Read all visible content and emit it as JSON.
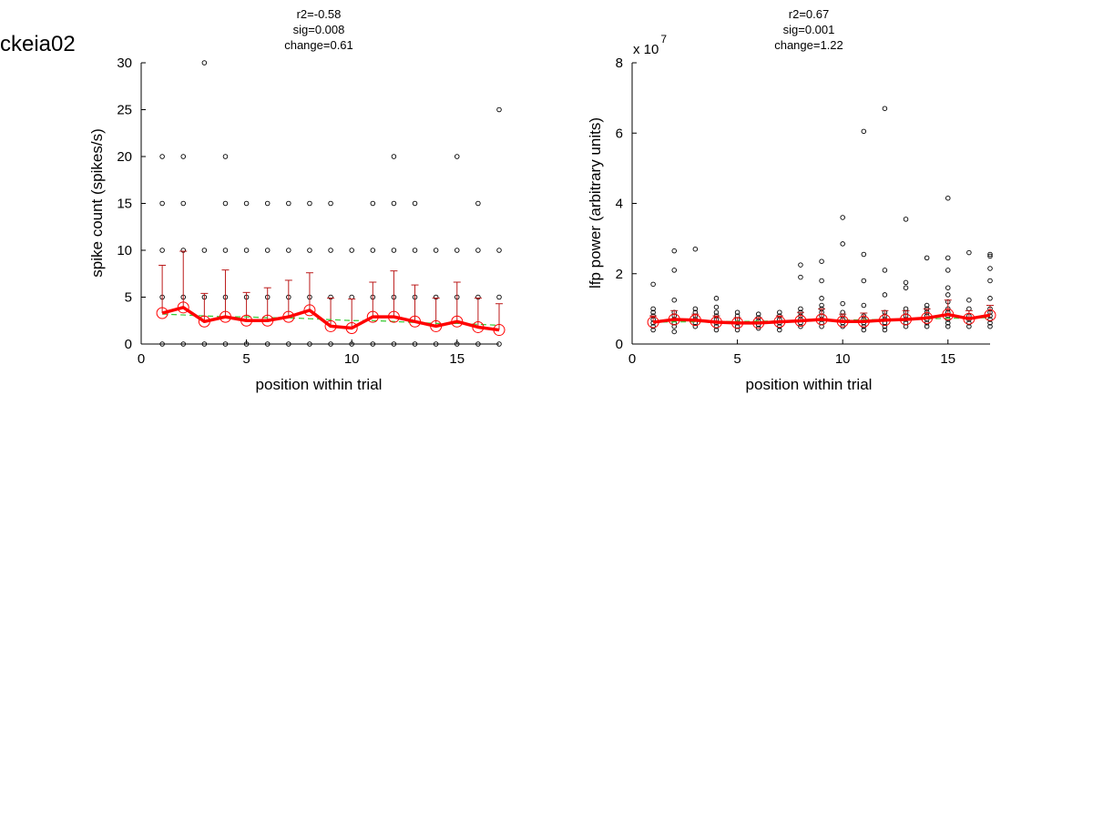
{
  "figure": {
    "title": "ckeia02"
  },
  "colors": {
    "mean": "#ff0000",
    "errorbar": "#bb1a1a",
    "fit": "#33cc33",
    "points": "#000000",
    "axes": "#000000"
  },
  "chart_data": [
    {
      "type": "scatter",
      "stats": [
        "r2=-0.58",
        "sig=0.008",
        "change=0.61"
      ],
      "xlabel": "position within trial",
      "ylabel": "spike count (spikes/s)",
      "xlim": [
        0,
        17
      ],
      "ylim": [
        0,
        30
      ],
      "xticks": [
        0,
        5,
        10,
        15
      ],
      "yticks": [
        0,
        5,
        10,
        15,
        20,
        25,
        30
      ],
      "grid": false,
      "legend": "none",
      "x": [
        1,
        2,
        3,
        4,
        5,
        6,
        7,
        8,
        9,
        10,
        11,
        12,
        13,
        14,
        15,
        16,
        17
      ],
      "series": [
        {
          "role": "mean",
          "values": [
            3.3,
            3.9,
            2.4,
            2.9,
            2.5,
            2.5,
            2.9,
            3.6,
            1.9,
            1.7,
            2.9,
            2.9,
            2.4,
            1.9,
            2.4,
            1.8,
            1.5
          ]
        },
        {
          "role": "errorbar-upper",
          "values": [
            8.4,
            9.9,
            5.4,
            7.9,
            5.5,
            6.0,
            6.8,
            7.6,
            4.9,
            4.8,
            6.6,
            7.8,
            6.3,
            4.9,
            6.6,
            4.9,
            4.3
          ]
        },
        {
          "role": "trend",
          "values": [
            3.2,
            3.1,
            3.0,
            2.9,
            2.9,
            2.8,
            2.8,
            2.7,
            2.6,
            2.5,
            2.5,
            2.4,
            2.3,
            2.2,
            2.2,
            2.1,
            2.0
          ]
        }
      ],
      "points": [
        {
          "x": 1,
          "ys": [
            0,
            5,
            10,
            15,
            20
          ]
        },
        {
          "x": 2,
          "ys": [
            0,
            5,
            10,
            15,
            20
          ]
        },
        {
          "x": 3,
          "ys": [
            0,
            5,
            10,
            30
          ]
        },
        {
          "x": 4,
          "ys": [
            0,
            5,
            10,
            15,
            20
          ]
        },
        {
          "x": 5,
          "ys": [
            0,
            5,
            10,
            15
          ]
        },
        {
          "x": 6,
          "ys": [
            0,
            5,
            10,
            15
          ]
        },
        {
          "x": 7,
          "ys": [
            0,
            5,
            10,
            15
          ]
        },
        {
          "x": 8,
          "ys": [
            0,
            5,
            10,
            15
          ]
        },
        {
          "x": 9,
          "ys": [
            0,
            5,
            10,
            15
          ]
        },
        {
          "x": 10,
          "ys": [
            0,
            5,
            10
          ]
        },
        {
          "x": 11,
          "ys": [
            0,
            5,
            10,
            15
          ]
        },
        {
          "x": 12,
          "ys": [
            0,
            5,
            10,
            15,
            20
          ]
        },
        {
          "x": 13,
          "ys": [
            0,
            5,
            10,
            15
          ]
        },
        {
          "x": 14,
          "ys": [
            0,
            5,
            10
          ]
        },
        {
          "x": 15,
          "ys": [
            0,
            5,
            10,
            20
          ]
        },
        {
          "x": 16,
          "ys": [
            0,
            5,
            10,
            15
          ]
        },
        {
          "x": 17,
          "ys": [
            0,
            5,
            10,
            25
          ]
        }
      ]
    },
    {
      "type": "scatter",
      "stats": [
        "r2=0.67",
        "sig=0.001",
        "change=1.22"
      ],
      "xlabel": "position within trial",
      "ylabel": "lfp power (arbitrary units)",
      "multiplier": "x 10",
      "multiplier_exp": "7",
      "xlim": [
        0,
        17
      ],
      "ylim": [
        0,
        8
      ],
      "xticks": [
        0,
        5,
        10,
        15
      ],
      "yticks": [
        0,
        2,
        4,
        6,
        8
      ],
      "grid": false,
      "legend": "none",
      "x": [
        1,
        2,
        3,
        4,
        5,
        6,
        7,
        8,
        9,
        10,
        11,
        12,
        13,
        14,
        15,
        16,
        17
      ],
      "series": [
        {
          "role": "mean",
          "values": [
            0.62,
            0.7,
            0.68,
            0.62,
            0.6,
            0.6,
            0.63,
            0.66,
            0.7,
            0.64,
            0.64,
            0.68,
            0.7,
            0.74,
            0.84,
            0.72,
            0.82
          ]
        },
        {
          "role": "errorbar-upper",
          "values": [
            0.8,
            0.95,
            0.85,
            0.8,
            0.75,
            0.75,
            0.8,
            0.9,
            1.0,
            0.85,
            0.88,
            0.95,
            0.95,
            1.0,
            1.25,
            0.95,
            1.1
          ]
        },
        {
          "role": "trend",
          "values": [
            0.62,
            0.63,
            0.63,
            0.64,
            0.64,
            0.65,
            0.65,
            0.66,
            0.67,
            0.68,
            0.69,
            0.7,
            0.71,
            0.72,
            0.73,
            0.74,
            0.75
          ]
        }
      ],
      "points": [
        {
          "x": 1,
          "ys": [
            0.4,
            0.5,
            0.6,
            0.7,
            0.8,
            0.9,
            1.0,
            1.7
          ]
        },
        {
          "x": 2,
          "ys": [
            0.35,
            0.5,
            0.6,
            0.7,
            0.8,
            0.9,
            1.25,
            2.1,
            2.65
          ]
        },
        {
          "x": 3,
          "ys": [
            0.5,
            0.6,
            0.7,
            0.8,
            0.9,
            1.0,
            2.7
          ]
        },
        {
          "x": 4,
          "ys": [
            0.4,
            0.5,
            0.6,
            0.7,
            0.8,
            0.9,
            1.05,
            1.3
          ]
        },
        {
          "x": 5,
          "ys": [
            0.4,
            0.5,
            0.6,
            0.7,
            0.8,
            0.9
          ]
        },
        {
          "x": 6,
          "ys": [
            0.45,
            0.55,
            0.65,
            0.75,
            0.85
          ]
        },
        {
          "x": 7,
          "ys": [
            0.4,
            0.5,
            0.6,
            0.7,
            0.8,
            0.9
          ]
        },
        {
          "x": 8,
          "ys": [
            0.5,
            0.6,
            0.7,
            0.8,
            0.9,
            1.0,
            1.9,
            2.25
          ]
        },
        {
          "x": 9,
          "ys": [
            0.5,
            0.6,
            0.7,
            0.8,
            0.9,
            1.0,
            1.1,
            1.3,
            1.8,
            2.35
          ]
        },
        {
          "x": 10,
          "ys": [
            0.5,
            0.6,
            0.7,
            0.8,
            0.9,
            1.15,
            2.85,
            3.6
          ]
        },
        {
          "x": 11,
          "ys": [
            0.4,
            0.5,
            0.6,
            0.7,
            0.8,
            1.1,
            1.8,
            2.55,
            6.05
          ]
        },
        {
          "x": 12,
          "ys": [
            0.4,
            0.5,
            0.6,
            0.7,
            0.8,
            0.9,
            1.4,
            2.1,
            6.7
          ]
        },
        {
          "x": 13,
          "ys": [
            0.5,
            0.6,
            0.7,
            0.8,
            0.9,
            1.0,
            1.6,
            1.75,
            3.55
          ]
        },
        {
          "x": 14,
          "ys": [
            0.5,
            0.6,
            0.7,
            0.8,
            0.9,
            1.0,
            1.1,
            2.45
          ]
        },
        {
          "x": 15,
          "ys": [
            0.5,
            0.6,
            0.7,
            0.8,
            0.9,
            1.0,
            1.2,
            1.4,
            1.6,
            2.1,
            2.45,
            4.15
          ]
        },
        {
          "x": 16,
          "ys": [
            0.5,
            0.6,
            0.7,
            0.8,
            1.0,
            1.25,
            2.6
          ]
        },
        {
          "x": 17,
          "ys": [
            0.5,
            0.6,
            0.7,
            0.8,
            0.9,
            1.0,
            1.3,
            1.8,
            2.15,
            2.5,
            2.55
          ]
        }
      ]
    }
  ]
}
